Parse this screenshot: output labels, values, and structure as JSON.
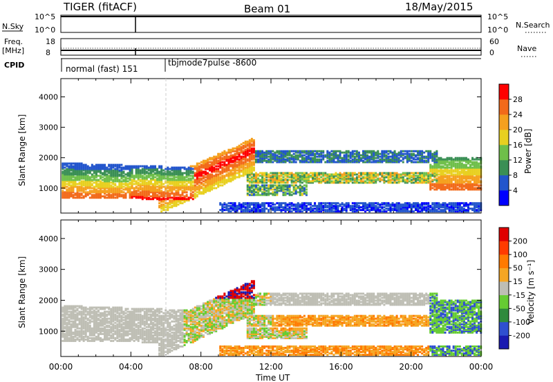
{
  "header": {
    "radar": "TIGER (fitACF)",
    "beam": "Beam 01",
    "date": "18/May/2015"
  },
  "panels": {
    "nsky": {
      "label": "N.Sky",
      "ticks_left": [
        "10^5",
        "10^0"
      ],
      "ticks_right": [
        "10^5",
        "10^0"
      ],
      "right_label": "N.Search"
    },
    "freq": {
      "label_line1": "Freq.",
      "label_line2": "[MHz]",
      "ticks_left": [
        "18",
        "8"
      ],
      "ticks_right": [
        "60",
        "0"
      ],
      "right_label": "Nave"
    },
    "cpid": {
      "label": "CPID",
      "segments": [
        {
          "label": "normal (fast) 151",
          "start": "00:00",
          "end": "06:00"
        },
        {
          "label": "tbjmode7pulse -8600",
          "start": "06:00",
          "end": "00:00"
        }
      ]
    }
  },
  "colors": {
    "power": [
      "#0000ff",
      "#2255cc",
      "#3a8f55",
      "#6fbf4a",
      "#e8d020",
      "#f5a01e",
      "#f26a1a",
      "#ff0000"
    ],
    "velocity": [
      "#1a1ab0",
      "#2f4fd0",
      "#2f8a3c",
      "#66cc33",
      "#bebeb4",
      "#f5a623",
      "#ff7a00",
      "#ff3b00",
      "#e00000"
    ]
  },
  "chart_data": [
    {
      "type": "heatmap",
      "variable": "power",
      "xlabel": "Time UT",
      "ylabel": "Slant Range [km]",
      "x_ticks": [
        "00:00",
        "04:00",
        "08:00",
        "12:00",
        "16:00",
        "20:00",
        "00:00"
      ],
      "xlim_hours": [
        0,
        24
      ],
      "ylim_km": [
        180,
        4600
      ],
      "y_ticks": [
        1000,
        2000,
        3000,
        4000
      ],
      "colorbar": {
        "label": "Power [dB]",
        "ticks": [
          4,
          8,
          12,
          16,
          20,
          24,
          28
        ],
        "range": [
          0,
          32
        ]
      }
    },
    {
      "type": "heatmap",
      "variable": "velocity",
      "xlabel": "Time UT",
      "ylabel": "Slant Range [km]",
      "x_ticks": [
        "00:00",
        "04:00",
        "08:00",
        "12:00",
        "16:00",
        "20:00",
        "00:00"
      ],
      "xlim_hours": [
        0,
        24
      ],
      "ylim_km": [
        180,
        4600
      ],
      "y_ticks": [
        1000,
        2000,
        3000,
        4000
      ],
      "colorbar": {
        "label": "Velocity [m s⁻¹]",
        "ticks": [
          "200",
          "100",
          "50",
          "15",
          "-15",
          "-50",
          "-100",
          "-200"
        ]
      }
    }
  ]
}
